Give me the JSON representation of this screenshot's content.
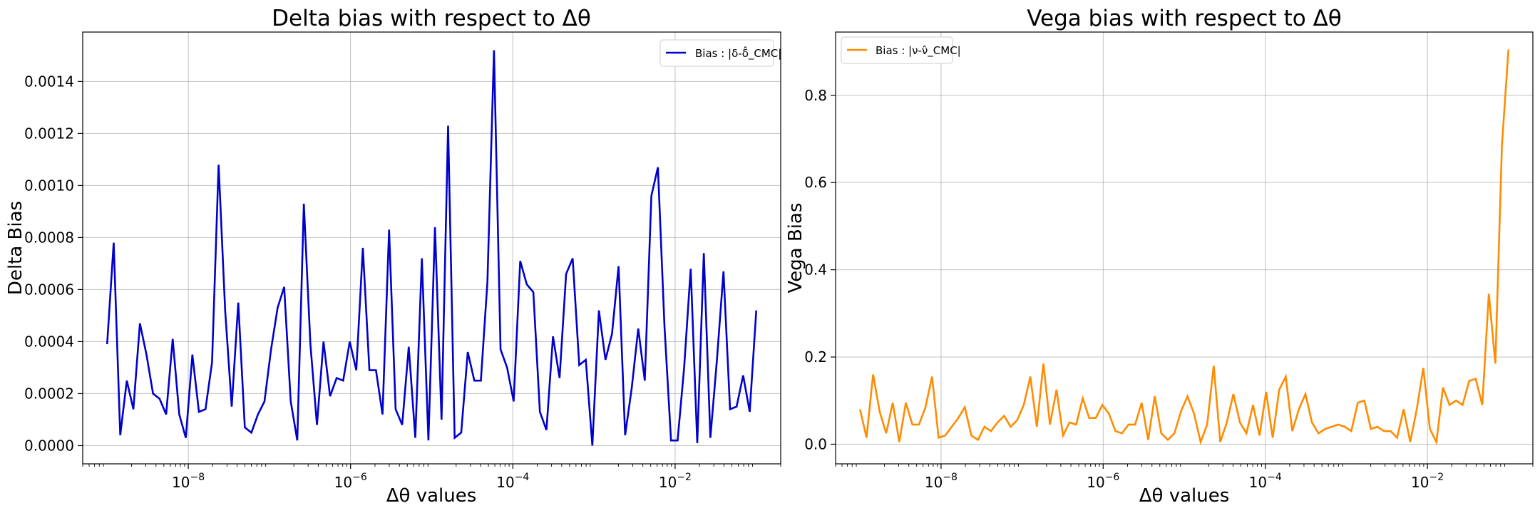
{
  "chart_data": [
    {
      "type": "line",
      "title": "Delta bias with respect to Δθ",
      "xlabel": "Δθ values",
      "ylabel": "Delta Bias",
      "xscale": "log",
      "xlim": [
        5e-10,
        0.2
      ],
      "ylim": [
        -7e-05,
        0.00159
      ],
      "grid": true,
      "legend_position": "top-right",
      "xticks": [
        {
          "value": 1e-08,
          "label": "10^-8"
        },
        {
          "value": 1e-06,
          "label": "10^-6"
        },
        {
          "value": 0.0001,
          "label": "10^-4"
        },
        {
          "value": 0.01,
          "label": "10^-2"
        }
      ],
      "yticks": [
        {
          "value": 0,
          "label": "0.0000"
        },
        {
          "value": 0.0002,
          "label": "0.0002"
        },
        {
          "value": 0.0004,
          "label": "0.0004"
        },
        {
          "value": 0.0006,
          "label": "0.0006"
        },
        {
          "value": 0.0008,
          "label": "0.0008"
        },
        {
          "value": 0.001,
          "label": "0.0010"
        },
        {
          "value": 0.0012,
          "label": "0.0012"
        },
        {
          "value": 0.0014,
          "label": "0.0014"
        }
      ],
      "series": [
        {
          "name": "Bias : |δ-δ̂_CMC|",
          "color": "#0000cc",
          "x_log10_start": -9,
          "x_log10_end": -1,
          "values": [
            0.00039,
            0.00078,
            4e-05,
            0.00025,
            0.00014,
            0.00047,
            0.00035,
            0.0002,
            0.00018,
            0.00012,
            0.00041,
            0.00012,
            3e-05,
            0.00035,
            0.00013,
            0.00014,
            0.00032,
            0.00108,
            0.00052,
            0.00015,
            0.00055,
            7e-05,
            5e-05,
            0.00012,
            0.00017,
            0.00037,
            0.00053,
            0.00061,
            0.00017,
            2e-05,
            0.00093,
            0.00039,
            8e-05,
            0.0004,
            0.00019,
            0.00026,
            0.00025,
            0.0004,
            0.00029,
            0.00076,
            0.00029,
            0.00029,
            0.00012,
            0.00083,
            0.00014,
            8e-05,
            0.00038,
            3e-05,
            0.00072,
            2e-05,
            0.00084,
            0.0001,
            0.00123,
            3e-05,
            5e-05,
            0.00036,
            0.00025,
            0.00025,
            0.00063,
            0.00152,
            0.00037,
            0.0003,
            0.00017,
            0.00071,
            0.00062,
            0.00059,
            0.00013,
            6e-05,
            0.00042,
            0.00026,
            0.00066,
            0.00072,
            0.00031,
            0.00033,
            0.0,
            0.00052,
            0.00033,
            0.00043,
            0.00069,
            4e-05,
            0.00022,
            0.00045,
            0.00025,
            0.00096,
            0.00107,
            0.00046,
            2e-05,
            2e-05,
            0.0003,
            0.00068,
            1e-05,
            0.00074,
            3e-05,
            0.00033,
            0.00067,
            0.00014,
            0.00015,
            0.00027,
            0.00013,
            0.00052
          ]
        }
      ]
    },
    {
      "type": "line",
      "title": "Vega bias with respect to Δθ",
      "xlabel": "Δθ values",
      "ylabel": "Vega Bias",
      "xscale": "log",
      "xlim": [
        5e-10,
        0.2
      ],
      "ylim": [
        -0.045,
        0.945
      ],
      "grid": true,
      "legend_position": "top-left",
      "xticks": [
        {
          "value": 1e-08,
          "label": "10^-8"
        },
        {
          "value": 1e-06,
          "label": "10^-6"
        },
        {
          "value": 0.0001,
          "label": "10^-4"
        },
        {
          "value": 0.01,
          "label": "10^-2"
        }
      ],
      "yticks": [
        {
          "value": 0.0,
          "label": "0.0"
        },
        {
          "value": 0.2,
          "label": "0.2"
        },
        {
          "value": 0.4,
          "label": "0.4"
        },
        {
          "value": 0.6,
          "label": "0.6"
        },
        {
          "value": 0.8,
          "label": "0.8"
        }
      ],
      "series": [
        {
          "name": "Bias : |ν-ν̂_CMC|",
          "color": "#ff8c00",
          "x_log10_start": -9,
          "x_log10_end": -1,
          "values": [
            0.08,
            0.015,
            0.16,
            0.075,
            0.025,
            0.095,
            0.005,
            0.095,
            0.045,
            0.045,
            0.085,
            0.155,
            0.015,
            0.02,
            0.04,
            0.06,
            0.085,
            0.02,
            0.01,
            0.04,
            0.03,
            0.05,
            0.065,
            0.04,
            0.055,
            0.09,
            0.155,
            0.04,
            0.185,
            0.045,
            0.125,
            0.02,
            0.05,
            0.045,
            0.105,
            0.06,
            0.06,
            0.09,
            0.07,
            0.03,
            0.025,
            0.045,
            0.045,
            0.095,
            0.01,
            0.11,
            0.025,
            0.01,
            0.025,
            0.075,
            0.11,
            0.07,
            0.005,
            0.045,
            0.18,
            0.005,
            0.05,
            0.115,
            0.05,
            0.025,
            0.09,
            0.02,
            0.12,
            0.015,
            0.125,
            0.155,
            0.03,
            0.08,
            0.115,
            0.05,
            0.025,
            0.035,
            0.04,
            0.045,
            0.04,
            0.03,
            0.095,
            0.1,
            0.035,
            0.04,
            0.03,
            0.03,
            0.015,
            0.08,
            0.005,
            0.08,
            0.175,
            0.035,
            0.005,
            0.13,
            0.09,
            0.1,
            0.09,
            0.145,
            0.15,
            0.09,
            0.345,
            0.185,
            0.685,
            0.905
          ]
        }
      ]
    }
  ]
}
